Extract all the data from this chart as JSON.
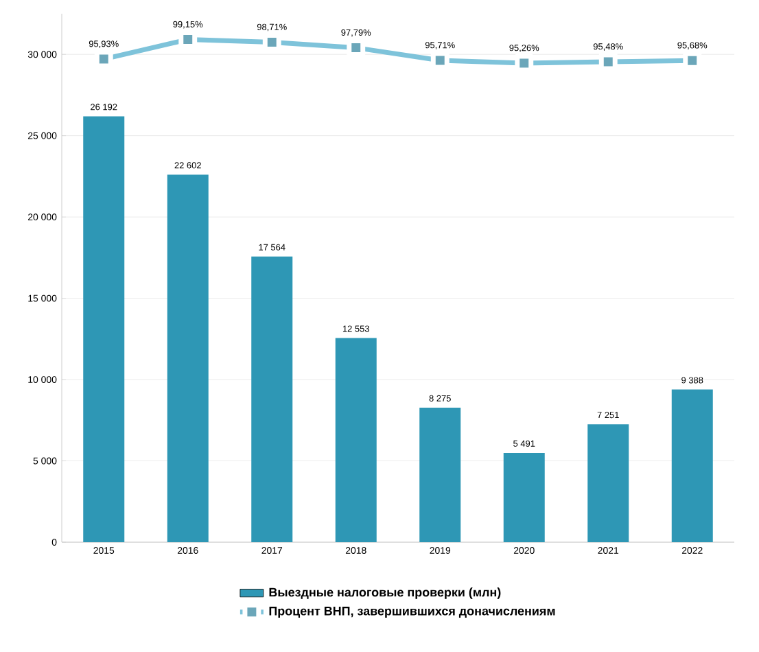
{
  "chart_data": {
    "type": "bar",
    "categories": [
      "2015",
      "2016",
      "2017",
      "2018",
      "2019",
      "2020",
      "2021",
      "2022"
    ],
    "series": [
      {
        "name": "Выездные налоговые проверки (млн)",
        "color": "#2e97b5",
        "values": [
          26192,
          22602,
          17564,
          12553,
          8275,
          5491,
          7251,
          9388
        ],
        "value_labels": [
          "26 192",
          "22 602",
          "17 564",
          "12 553",
          "8 275",
          "5 491",
          "7 251",
          "9 388"
        ]
      },
      {
        "name": "Процент ВНП, завершившихся доначислениям",
        "type": "line",
        "axis": "y2",
        "color": "#7ec3da",
        "marker": "square",
        "values": [
          95.93,
          99.15,
          98.71,
          97.79,
          95.71,
          95.26,
          95.48,
          95.68
        ],
        "value_labels": [
          "95,93%",
          "99,15%",
          "98,71%",
          "97,79%",
          "95,71%",
          "95,26%",
          "95,48%",
          "95,68%"
        ]
      }
    ],
    "ylim": [
      0,
      32500
    ],
    "yticks": [
      0,
      {
        "value": 5000,
        "label": "5 000"
      },
      {
        "value": 10000,
        "label": "10 000"
      },
      {
        "value": 15000,
        "label": "15 000"
      },
      {
        "value": 20000,
        "label": "20 000"
      },
      {
        "value": 25000,
        "label": "25 000"
      },
      {
        "value": 30000,
        "label": "30 000"
      }
    ],
    "y2lim": [
      16.3,
      103.4
    ],
    "tick_labels": [
      "x",
      "y"
    ],
    "grid": "y",
    "legend": "bottom"
  }
}
